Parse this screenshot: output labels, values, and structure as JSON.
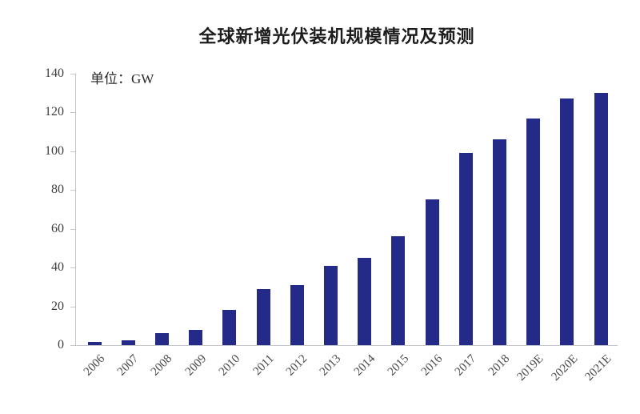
{
  "figure": {
    "title": "全球新增光伏装机规模情况及预测",
    "unit_label": "单位：GW"
  },
  "chart_data": {
    "type": "bar",
    "title": "全球新增光伏装机规模情况及预测",
    "unit": "GW",
    "categories": [
      "2006",
      "2007",
      "2008",
      "2009",
      "2010",
      "2011",
      "2012",
      "2013",
      "2014",
      "2015",
      "2016",
      "2017",
      "2018",
      "2019E",
      "2020E",
      "2021E"
    ],
    "values": [
      1.5,
      2.5,
      6,
      8,
      18,
      29,
      31,
      41,
      45,
      56,
      75,
      99,
      106,
      117,
      127,
      130
    ],
    "xlabel": "",
    "ylabel": "",
    "ylim": [
      0,
      140
    ],
    "y_ticks": [
      0,
      20,
      40,
      60,
      80,
      100,
      120,
      140
    ],
    "grid": false,
    "legend": false,
    "colors": {
      "bar": "#232a87",
      "axis": "#c4c6cc",
      "tick_text": "#3d3d3d",
      "xtick_text": "#4a4a4a",
      "title_text": "#1c1c1c"
    }
  }
}
